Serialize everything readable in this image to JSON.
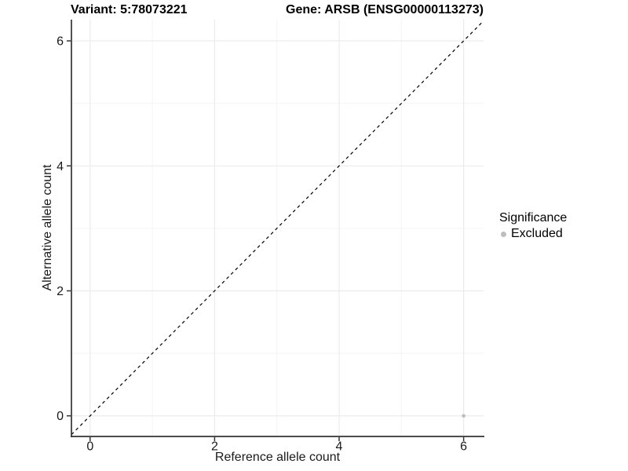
{
  "title": {
    "variant": "Variant: 5:78073221",
    "gene": "Gene: ARSB (ENSG00000113273)"
  },
  "axes": {
    "x_label": "Reference allele count",
    "y_label": "Alternative allele count"
  },
  "legend": {
    "title": "Significance",
    "items": [
      {
        "label": "Excluded",
        "color": "#bebebe"
      }
    ]
  },
  "chart_data": {
    "type": "scatter",
    "title": "Variant: 5:78073221   Gene: ARSB (ENSG00000113273)",
    "xlabel": "Reference allele count",
    "ylabel": "Alternative allele count",
    "xlim": [
      -0.3,
      6.32
    ],
    "ylim": [
      -0.33,
      6.34
    ],
    "x_ticks": [
      0,
      2,
      4,
      6
    ],
    "y_ticks": [
      0,
      2,
      4,
      6
    ],
    "x_minor_ticks": [
      1,
      3,
      5
    ],
    "y_minor_ticks": [
      1,
      3,
      5
    ],
    "grid": true,
    "legend_position": "right",
    "series": [
      {
        "name": "Excluded",
        "color": "#bebebe",
        "points": [
          {
            "x": 6,
            "y": 0
          }
        ]
      }
    ],
    "reference_line": {
      "kind": "identity",
      "style": "dashed",
      "color": "#000000"
    },
    "style": {
      "grid_major_color": "#ebebeb",
      "grid_minor_color": "#f3f3f3",
      "axis_line_color": "#333333",
      "point_radius": 2.3
    }
  }
}
